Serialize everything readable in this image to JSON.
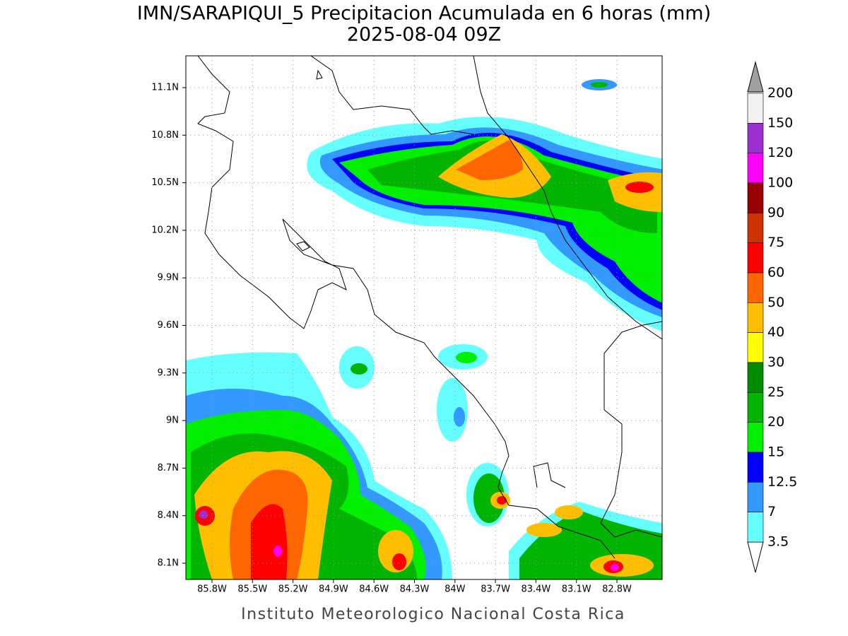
{
  "title": "IMN/SARAPIQUI_5 Precipitacion Acumulada en 6 horas (mm)",
  "subtitle": "2025-08-04 09Z",
  "footer": "Instituto Meteorologico Nacional Costa Rica",
  "lat_labels": [
    "11.1N",
    "10.8N",
    "10.5N",
    "10.2N",
    "9.9N",
    "9.6N",
    "9.3N",
    "9N",
    "8.7N",
    "8.4N",
    "8.1N"
  ],
  "lon_labels": [
    "85.8W",
    "85.5W",
    "85.2W",
    "84.9W",
    "84.6W",
    "84.3W",
    "84W",
    "83.7W",
    "83.4W",
    "83.1W",
    "82.8W"
  ],
  "colorbar": {
    "levels": [
      200,
      150,
      120,
      100,
      90,
      75,
      60,
      50,
      40,
      30,
      25,
      20,
      15,
      12.5,
      7,
      3.5
    ],
    "colors": [
      "#f2f2f2",
      "#9b30d0",
      "#ff00ff",
      "#990000",
      "#cc3300",
      "#ff0000",
      "#ff6600",
      "#ffbf00",
      "#ffff00",
      "#008c00",
      "#00b400",
      "#00f000",
      "#0000ff",
      "#3399ff",
      "#66ffff"
    ]
  }
}
